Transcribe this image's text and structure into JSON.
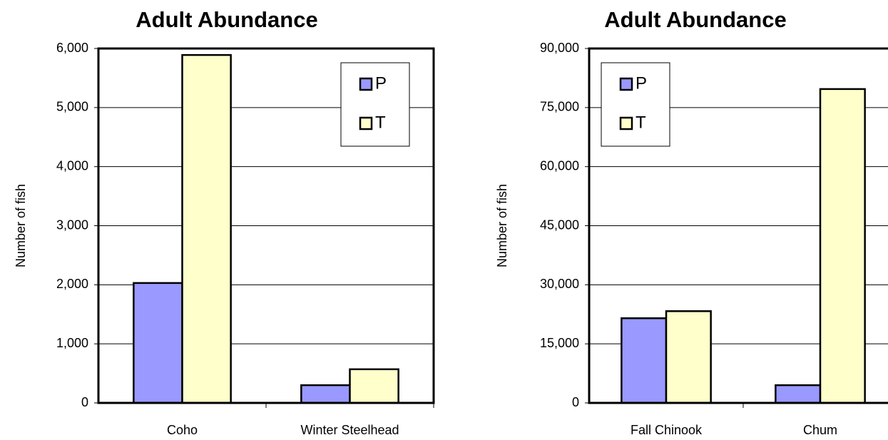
{
  "chart_data": [
    {
      "type": "bar",
      "title": "Adult Abundance",
      "y_label": "Number of fish",
      "categories": [
        "Coho",
        "Winter Steelhead"
      ],
      "series": [
        {
          "name": "P",
          "color": "#9999ff",
          "values": [
            2030,
            300
          ]
        },
        {
          "name": "T",
          "color": "#ffffcc",
          "values": [
            5890,
            570
          ]
        }
      ],
      "ylim": [
        0,
        6000
      ],
      "yticks": [
        0,
        {
          "value": 1000,
          "label": "1,000"
        },
        {
          "value": 2000,
          "label": "2,000"
        },
        {
          "value": 3000,
          "label": "3,000"
        },
        {
          "value": 4000,
          "label": "4,000"
        },
        {
          "value": 5000,
          "label": "5,000"
        },
        {
          "value": 6000,
          "label": "6,000"
        }
      ],
      "grid": true,
      "legend": "upper right"
    },
    {
      "type": "bar",
      "title": "Adult Abundance",
      "y_label": "Number of fish",
      "categories": [
        "Fall Chinook",
        "Chum"
      ],
      "series": [
        {
          "name": "P",
          "color": "#9999ff",
          "values": [
            21500,
            4500
          ]
        },
        {
          "name": "T",
          "color": "#ffffcc",
          "values": [
            23300,
            79700
          ]
        }
      ],
      "ylim": [
        0,
        90000
      ],
      "yticks": [
        0,
        {
          "value": 15000,
          "label": "15,000"
        },
        {
          "value": 30000,
          "label": "30,000"
        },
        {
          "value": 45000,
          "label": "45,000"
        },
        {
          "value": 60000,
          "label": "60,000"
        },
        {
          "value": 75000,
          "label": "75,000"
        },
        {
          "value": 90000,
          "label": "90,000"
        }
      ],
      "grid": true,
      "legend": "upper left"
    }
  ]
}
